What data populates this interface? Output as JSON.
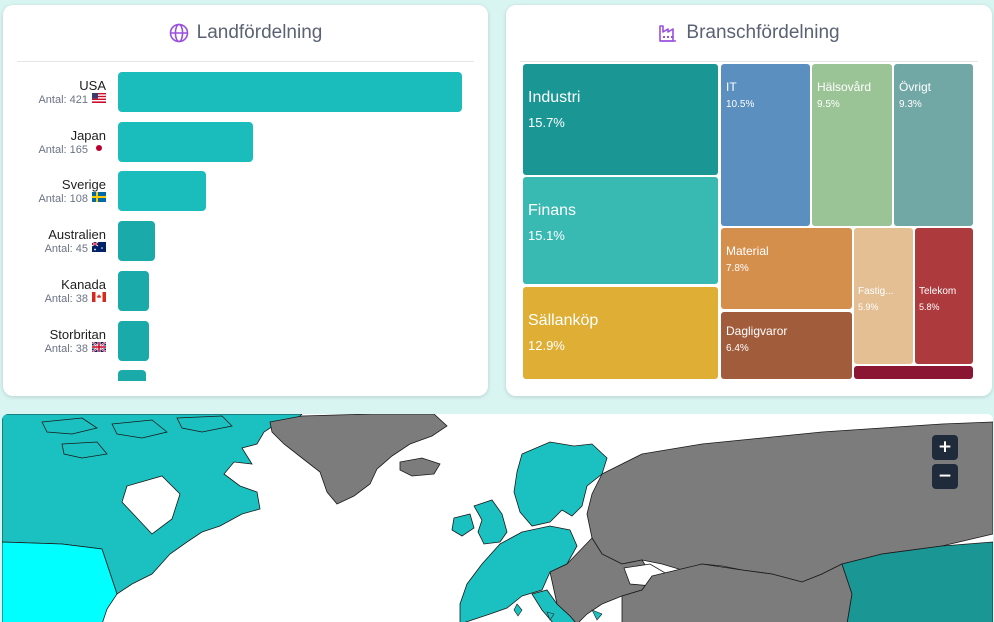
{
  "country_panel": {
    "title": "Landfördelning",
    "icon": "globe-icon",
    "count_prefix": "Antal:",
    "max_count": 421,
    "items": [
      {
        "name": "USA",
        "count": 421,
        "flag": "us-flag-icon"
      },
      {
        "name": "Japan",
        "count": 165,
        "flag": "jp-flag-icon"
      },
      {
        "name": "Sverige",
        "count": 108,
        "flag": "se-flag-icon"
      },
      {
        "name": "Australien",
        "count": 45,
        "flag": "au-flag-icon"
      },
      {
        "name": "Kanada",
        "count": 38,
        "flag": "ca-flag-icon"
      },
      {
        "name": "Storbritan",
        "count": 38,
        "flag": "gb-flag-icon"
      }
    ]
  },
  "industry_panel": {
    "title": "Branschfördelning",
    "icon": "factory-icon",
    "tiles": [
      {
        "name": "Industri",
        "pct": "15.7%",
        "color": "#1a9695"
      },
      {
        "name": "Finans",
        "pct": "15.1%",
        "color": "#38b9b2"
      },
      {
        "name": "Sällanköp",
        "pct": "12.9%",
        "color": "#deae35"
      },
      {
        "name": "IT",
        "pct": "10.5%",
        "color": "#5b8fc0"
      },
      {
        "name": "Hälsovård",
        "pct": "9.5%",
        "color": "#9bc496"
      },
      {
        "name": "Övrigt",
        "pct": "9.3%",
        "color": "#71a8a6"
      },
      {
        "name": "Material",
        "pct": "7.8%",
        "color": "#d58f4d"
      },
      {
        "name": "Dagligvaror",
        "pct": "6.4%",
        "color": "#a15c3c"
      },
      {
        "name": "Fastig...",
        "pct": "5.9%",
        "color": "#e3bf93"
      },
      {
        "name": "Telekom",
        "pct": "5.8%",
        "color": "#ad3b3d"
      },
      {
        "name": "",
        "pct": "",
        "color": "#8b1634"
      }
    ]
  },
  "map": {
    "zoom_in_label": "+",
    "zoom_out_label": "−",
    "highlight_color": "#1bc1c0",
    "other_color": "#7c7c7c",
    "strong_color": "#00ffff"
  }
}
